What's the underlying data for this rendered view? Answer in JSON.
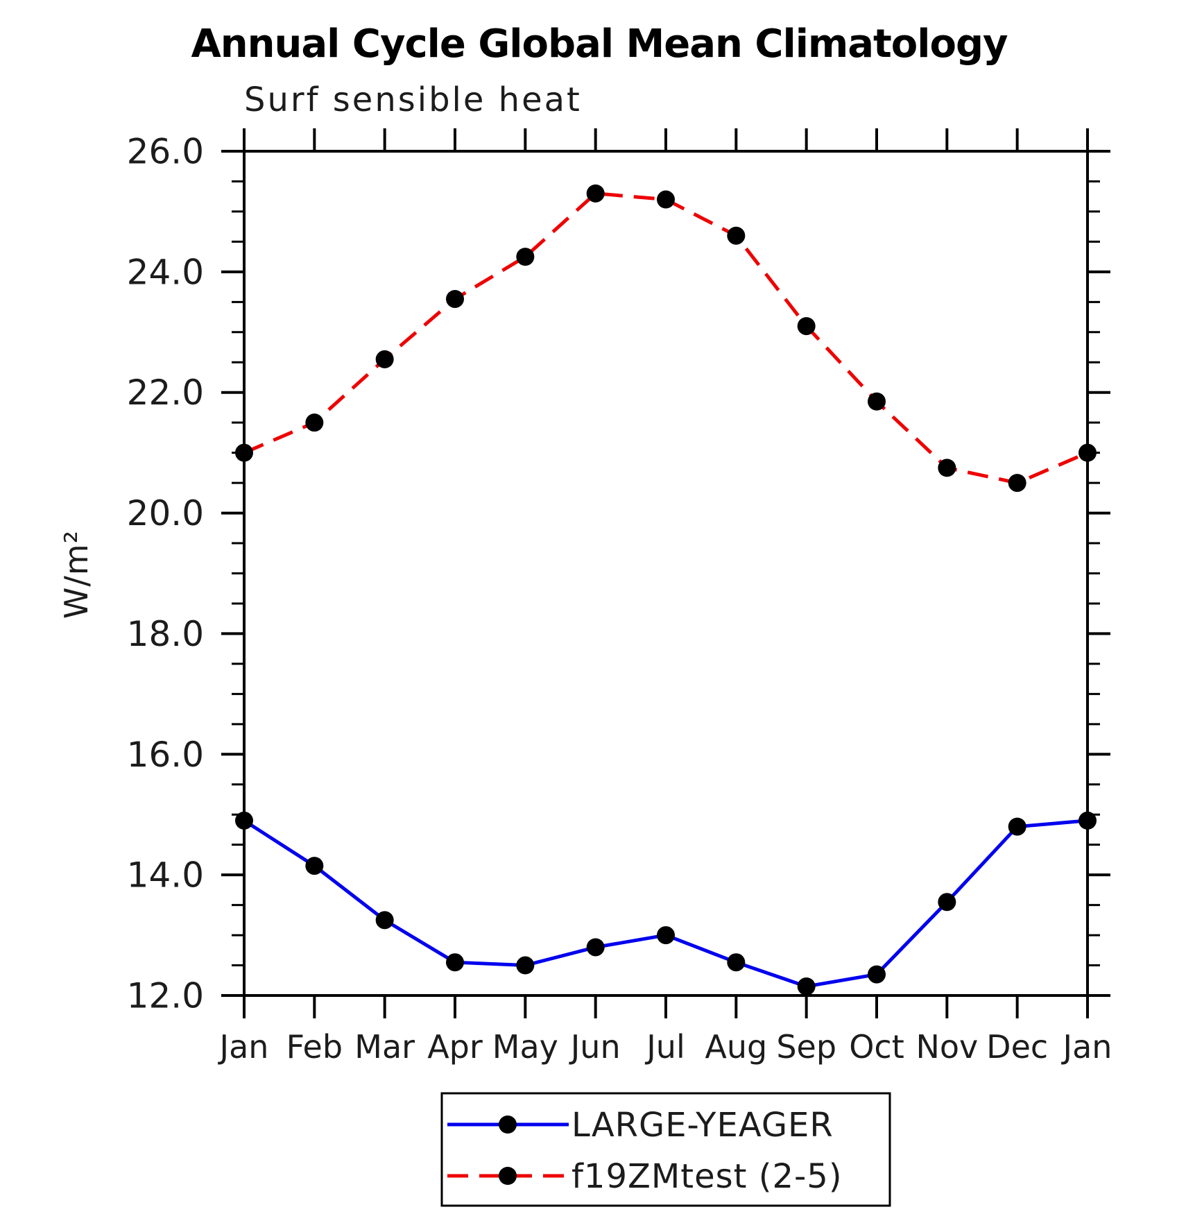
{
  "chart_data": {
    "type": "line",
    "title": "Annual Cycle Global Mean Climatology",
    "subtitle": "Surf sensible heat",
    "ylabel": "W/m²",
    "xlabel": "",
    "categories": [
      "Jan",
      "Feb",
      "Mar",
      "Apr",
      "May",
      "Jun",
      "Jul",
      "Aug",
      "Sep",
      "Oct",
      "Nov",
      "Dec",
      "Jan"
    ],
    "ylim": [
      12.0,
      26.0
    ],
    "ytick_major_step": 2.0,
    "ytick_minor_step": 0.5,
    "ytick_labels": [
      "12.0",
      "14.0",
      "16.0",
      "18.0",
      "20.0",
      "22.0",
      "24.0",
      "26.0"
    ],
    "grid": false,
    "frame_color": "#000000",
    "marker_color": "#000000",
    "legend_position": "bottom-center",
    "series": [
      {
        "name": "LARGE-YEAGER",
        "color": "#0000ee",
        "line_style": "solid",
        "marker": "circle",
        "values": [
          14.9,
          14.15,
          13.25,
          12.55,
          12.5,
          12.8,
          13.0,
          12.55,
          12.15,
          12.35,
          13.55,
          14.8,
          14.9
        ]
      },
      {
        "name": "f19ZMtest (2-5)",
        "color": "#ee0000",
        "line_style": "dashed",
        "marker": "circle",
        "values": [
          21.0,
          21.5,
          22.55,
          23.55,
          24.25,
          25.3,
          25.2,
          24.6,
          23.1,
          21.85,
          20.75,
          20.5,
          21.0
        ]
      }
    ]
  }
}
